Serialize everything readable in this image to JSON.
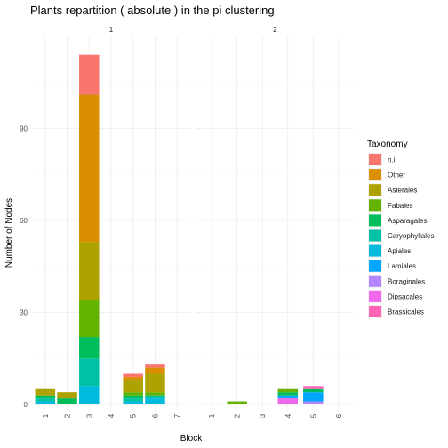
{
  "chart_data": {
    "type": "bar",
    "stacked": true,
    "faceted": true,
    "title": "Plants repartition ( absolute ) in the pi clustering",
    "xlabel": "Block",
    "ylabel": "Number of Nodes",
    "ylim": [
      0,
      120
    ],
    "yticks": [
      0,
      30,
      60,
      90
    ],
    "grid": true,
    "legend": {
      "title": "Taxonomy",
      "position": "right",
      "entries": [
        {
          "name": "n.i.",
          "color": "#F8766D"
        },
        {
          "name": "Other",
          "color": "#DB8E00"
        },
        {
          "name": "Asterales",
          "color": "#AEA200"
        },
        {
          "name": "Fabales",
          "color": "#64B200"
        },
        {
          "name": "Asparagales",
          "color": "#00BD5C"
        },
        {
          "name": "Caryophyllales",
          "color": "#00C1A7"
        },
        {
          "name": "Apiales",
          "color": "#00BADE"
        },
        {
          "name": "Lamiales",
          "color": "#00A6FF"
        },
        {
          "name": "Boraginales",
          "color": "#B385FF"
        },
        {
          "name": "Dipsacales",
          "color": "#EF67EB"
        },
        {
          "name": "Brassicales",
          "color": "#FF63B6"
        }
      ]
    },
    "facets": [
      {
        "label": "1",
        "categories": [
          "1",
          "2",
          "3",
          "4",
          "5",
          "6",
          "7"
        ],
        "bars": [
          {
            "x": "1",
            "segments": [
              {
                "taxon": "Apiales",
                "value": 1
              },
              {
                "taxon": "Caryophyllales",
                "value": 1
              },
              {
                "taxon": "Asparagales",
                "value": 1
              },
              {
                "taxon": "Asterales",
                "value": 2
              }
            ]
          },
          {
            "x": "2",
            "segments": [
              {
                "taxon": "Asparagales",
                "value": 2
              },
              {
                "taxon": "Asterales",
                "value": 2
              }
            ]
          },
          {
            "x": "3",
            "segments": [
              {
                "taxon": "Apiales",
                "value": 6
              },
              {
                "taxon": "Caryophyllales",
                "value": 9
              },
              {
                "taxon": "Asparagales",
                "value": 7
              },
              {
                "taxon": "Fabales",
                "value": 12
              },
              {
                "taxon": "Asterales",
                "value": 19
              },
              {
                "taxon": "Other",
                "value": 48
              },
              {
                "taxon": "n.i.",
                "value": 13
              }
            ]
          },
          {
            "x": "5",
            "segments": [
              {
                "taxon": "Apiales",
                "value": 1
              },
              {
                "taxon": "Caryophyllales",
                "value": 1
              },
              {
                "taxon": "Asparagales",
                "value": 1
              },
              {
                "taxon": "Fabales",
                "value": 1
              },
              {
                "taxon": "Asterales",
                "value": 4
              },
              {
                "taxon": "Other",
                "value": 1
              },
              {
                "taxon": "n.i.",
                "value": 1
              }
            ]
          },
          {
            "x": "6",
            "segments": [
              {
                "taxon": "Apiales",
                "value": 2
              },
              {
                "taxon": "Caryophyllales",
                "value": 1
              },
              {
                "taxon": "Fabales",
                "value": 1
              },
              {
                "taxon": "Asterales",
                "value": 6
              },
              {
                "taxon": "Other",
                "value": 2
              },
              {
                "taxon": "n.i.",
                "value": 1
              }
            ]
          }
        ]
      },
      {
        "label": "2",
        "categories": [
          "1",
          "2",
          "3",
          "4",
          "5",
          "6"
        ],
        "bars": [
          {
            "x": "2",
            "segments": [
              {
                "taxon": "Fabales",
                "value": 1
              }
            ]
          },
          {
            "x": "4",
            "segments": [
              {
                "taxon": "Dipsacales",
                "value": 2
              },
              {
                "taxon": "Lamiales",
                "value": 1
              },
              {
                "taxon": "Asparagales",
                "value": 1
              },
              {
                "taxon": "Fabales",
                "value": 1
              }
            ]
          },
          {
            "x": "5",
            "segments": [
              {
                "taxon": "Boraginales",
                "value": 1
              },
              {
                "taxon": "Lamiales",
                "value": 3
              },
              {
                "taxon": "Asparagales",
                "value": 1
              },
              {
                "taxon": "Brassicales",
                "value": 1
              }
            ]
          }
        ]
      }
    ]
  }
}
